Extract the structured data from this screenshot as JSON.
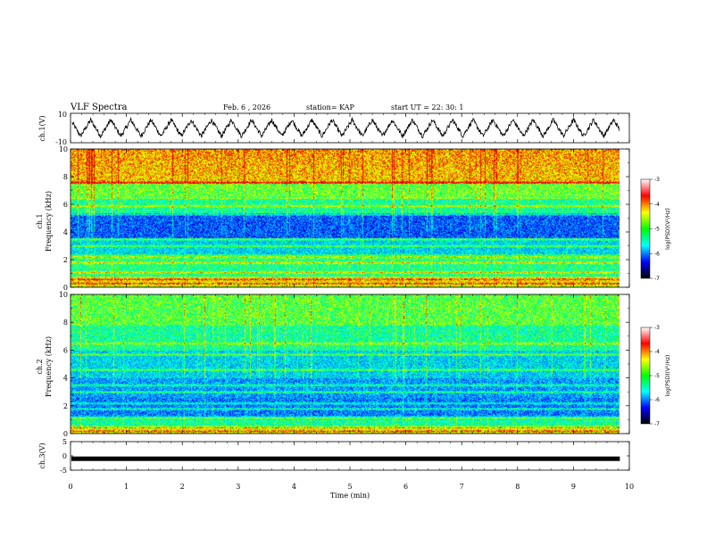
{
  "header": {
    "title": "VLF Spectra",
    "date": "Feb. 6 , 2026",
    "station": "station= KAP",
    "start_ut": "start  UT =   22: 30: 1"
  },
  "colorbar": {
    "label": "log(PSD)(V²/Hz)",
    "ticks": [
      "-3",
      "-4",
      "-5",
      "-6",
      "-7"
    ],
    "colors": [
      "#ffffff",
      "#ff0000",
      "#ffff00",
      "#00ff00",
      "#00ffff",
      "#0000ff",
      "#000000"
    ]
  },
  "chart_data": [
    {
      "name": "ch1-waveform",
      "type": "line",
      "ylabel": "ch.1(V)",
      "ylim": [
        -10,
        10
      ],
      "ytick_labels": [
        "10",
        "-10"
      ],
      "description_series": "oscillating waveform, approx period 0.35 min, amplitude ~6 V",
      "x": [
        0,
        10
      ],
      "xlabel": "Time  (min)"
    },
    {
      "name": "ch1-spectrogram",
      "type": "heatmap",
      "ylabel": "ch.1\nFrequency  (kHz)",
      "ylabel_lines": [
        "ch.1",
        "Frequency  (kHz)"
      ],
      "ylim": [
        0,
        10
      ],
      "ytick_labels": [
        "0",
        "2",
        "4",
        "6",
        "8",
        "10"
      ],
      "xlim": [
        0,
        9.83
      ],
      "zlim": [
        -7,
        -3
      ],
      "bands_khz": [
        0.3,
        0.6,
        1.1,
        1.8,
        2.2,
        3.0,
        3.5,
        5.3,
        5.9,
        6.5,
        7.6
      ]
    },
    {
      "name": "ch2-spectrogram",
      "type": "heatmap",
      "ylabel": "ch.2\nFrequency  (kHz)",
      "ylabel_lines": [
        "ch.2",
        "Frequency  (kHz)"
      ],
      "ylim": [
        0,
        10
      ],
      "ytick_labels": [
        "0",
        "2",
        "4",
        "6",
        "8",
        "10"
      ],
      "xlim": [
        0,
        9.83
      ],
      "zlim": [
        -7,
        -3
      ],
      "bands_khz": [
        0.2,
        0.5,
        1.2,
        1.8,
        2.2,
        3.0,
        3.5,
        4.6,
        5.7,
        6.5
      ]
    },
    {
      "name": "ch3-waveform",
      "type": "line",
      "ylabel": "ch.3(V)",
      "ylim": [
        -5,
        5
      ],
      "ytick_labels": [
        "5",
        "0",
        "-5"
      ],
      "value": -1,
      "xlim": [
        0,
        9.83
      ]
    }
  ],
  "xaxis": {
    "label": "Time  (min)",
    "ticks": [
      "0",
      "1",
      "2",
      "3",
      "4",
      "5",
      "6",
      "7",
      "8",
      "9",
      "10"
    ],
    "range": [
      0,
      10
    ]
  }
}
